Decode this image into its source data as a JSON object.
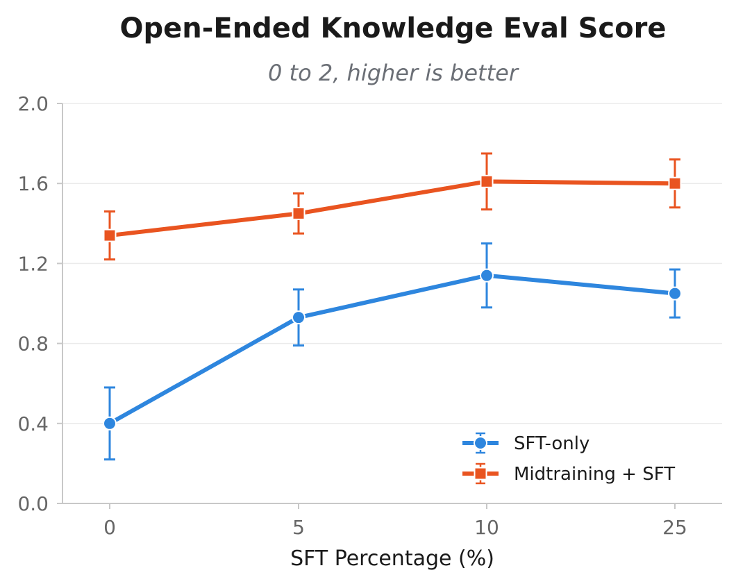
{
  "chart_data": {
    "type": "line",
    "title": "Open-Ended Knowledge Eval Score",
    "subtitle": "0 to 2, higher is better",
    "xlabel": "SFT Percentage (%)",
    "ylabel": "",
    "categories": [
      "0",
      "5",
      "10",
      "25"
    ],
    "ylim": [
      0,
      2
    ],
    "yticks": [
      "0.0",
      "0.4",
      "0.8",
      "1.2",
      "1.6",
      "2.0"
    ],
    "grid": "horizontal",
    "legend_position": "lower-right",
    "series": [
      {
        "name": "SFT-only",
        "color": "#2e86de",
        "marker": "circle",
        "values": [
          0.4,
          0.93,
          1.14,
          1.05
        ],
        "error": [
          0.18,
          0.14,
          0.16,
          0.12
        ]
      },
      {
        "name": "Midtraining + SFT",
        "color": "#e95420",
        "marker": "square",
        "values": [
          1.34,
          1.45,
          1.61,
          1.6
        ],
        "error": [
          0.12,
          0.1,
          0.14,
          0.12
        ]
      }
    ]
  }
}
